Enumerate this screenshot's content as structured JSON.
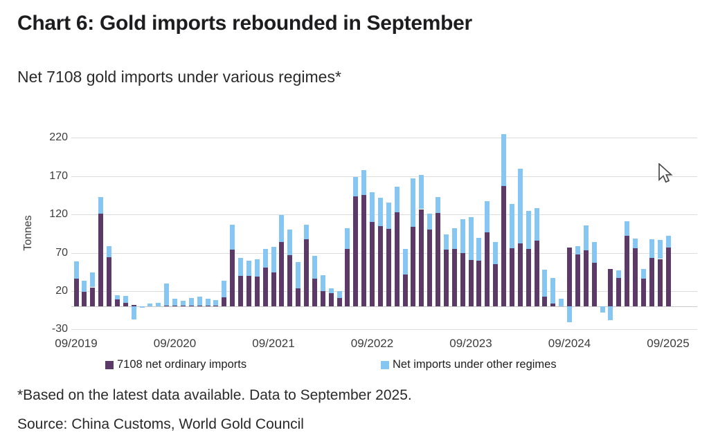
{
  "page": {
    "title": "Chart 6: Gold imports rebounded in September",
    "subtitle": "Net 7108 gold imports under various regimes*",
    "footnote": "*Based on the latest data available. Data to September 2025.",
    "source": "Source: China Customs, World Gold Council"
  },
  "chart_data": {
    "type": "bar",
    "stacked": true,
    "title": "Net 7108 gold imports under various regimes*",
    "xlabel": "",
    "ylabel": "Tonnes",
    "ylim": [
      -30,
      220
    ],
    "y_ticks": [
      220,
      170,
      120,
      70,
      20,
      -30
    ],
    "x_tick_labels": [
      "09/2019",
      "09/2020",
      "09/2021",
      "09/2022",
      "09/2023",
      "09/2024",
      "09/2025"
    ],
    "x_tick_month_interval": 12,
    "grid": true,
    "legend_position": "bottom",
    "units": "Tonnes",
    "categories": [
      "09/2019",
      "10/2019",
      "11/2019",
      "12/2019",
      "01/2020",
      "02/2020",
      "03/2020",
      "04/2020",
      "05/2020",
      "06/2020",
      "07/2020",
      "08/2020",
      "09/2020",
      "10/2020",
      "11/2020",
      "12/2020",
      "01/2021",
      "02/2021",
      "03/2021",
      "04/2021",
      "05/2021",
      "06/2021",
      "07/2021",
      "08/2021",
      "09/2021",
      "10/2021",
      "11/2021",
      "12/2021",
      "01/2022",
      "02/2022",
      "03/2022",
      "04/2022",
      "05/2022",
      "06/2022",
      "07/2022",
      "08/2022",
      "09/2022",
      "10/2022",
      "11/2022",
      "12/2022",
      "01/2023",
      "02/2023",
      "03/2023",
      "04/2023",
      "05/2023",
      "06/2023",
      "07/2023",
      "08/2023",
      "09/2023",
      "10/2023",
      "11/2023",
      "12/2023",
      "01/2024",
      "02/2024",
      "03/2024",
      "04/2024",
      "05/2024",
      "06/2024",
      "07/2024",
      "08/2024",
      "09/2024",
      "10/2024",
      "11/2024",
      "12/2024",
      "01/2025",
      "02/2025",
      "03/2025",
      "04/2025",
      "05/2025",
      "06/2025",
      "07/2025",
      "08/2025",
      "09/2025"
    ],
    "series": [
      {
        "name": "7108 net ordinary imports",
        "color": "#5C3A68",
        "values": [
          36,
          19,
          25,
          121,
          64,
          9,
          5,
          2,
          0,
          0,
          0,
          1,
          1,
          1,
          1,
          1,
          1,
          1,
          12,
          74,
          40,
          40,
          39,
          51,
          44,
          84,
          67,
          24,
          88,
          36,
          20,
          17,
          11,
          75,
          144,
          146,
          110,
          105,
          101,
          123,
          42,
          104,
          127,
          100,
          122,
          74,
          75,
          70,
          61,
          60,
          97,
          55,
          157,
          76,
          82,
          75,
          86,
          13,
          4,
          0,
          77,
          68,
          73,
          57,
          0,
          49,
          37,
          92,
          76,
          36,
          63,
          62,
          77
        ]
      },
      {
        "name": "Net imports under other regimes",
        "color": "#85C7F2",
        "values": [
          23,
          15,
          19,
          22,
          15,
          6,
          9,
          -17,
          -2,
          4,
          5,
          29,
          9,
          6,
          10,
          12,
          9,
          7,
          22,
          33,
          23,
          20,
          23,
          24,
          34,
          35,
          33,
          34,
          19,
          30,
          21,
          7,
          9,
          27,
          25,
          32,
          39,
          37,
          35,
          33,
          33,
          63,
          45,
          21,
          21,
          20,
          27,
          44,
          56,
          30,
          40,
          29,
          68,
          58,
          98,
          50,
          42,
          35,
          33,
          10,
          -21,
          11,
          33,
          27,
          -8,
          -18,
          10,
          19,
          13,
          13,
          25,
          25,
          15
        ]
      }
    ]
  }
}
